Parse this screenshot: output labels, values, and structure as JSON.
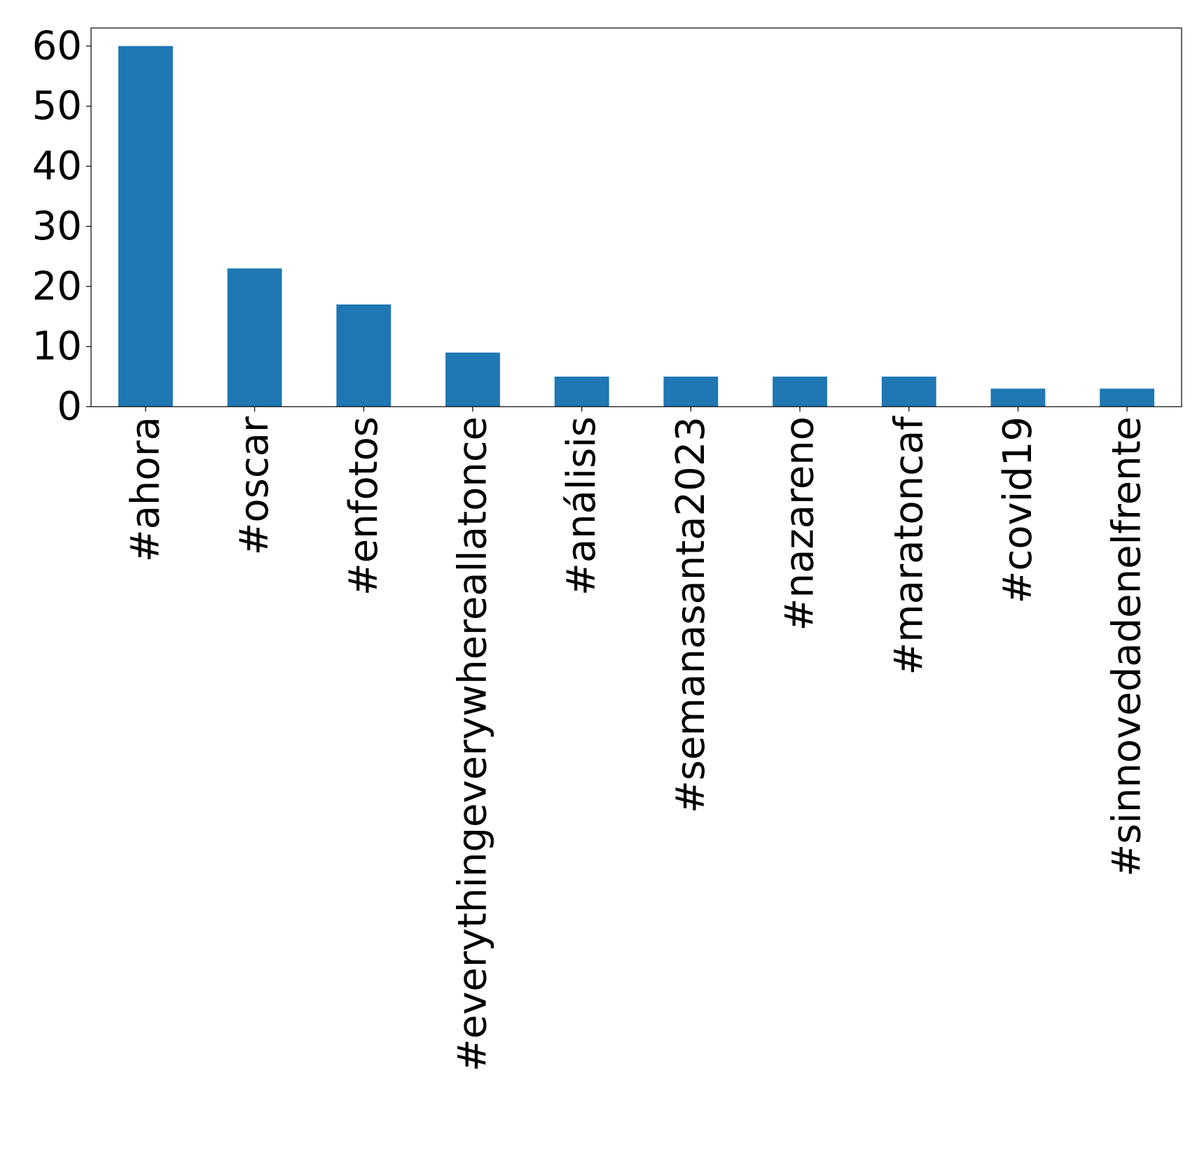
{
  "chart_data": {
    "type": "bar",
    "title": "",
    "xlabel": "",
    "ylabel": "",
    "categories": [
      "#ahora",
      "#oscar",
      "#enfotos",
      "#everythingeverywhereallatonce",
      "#análisis",
      "#semanasanta2023",
      "#nazareno",
      "#maratoncaf",
      "#covid19",
      "#sinnovedadenelfrente"
    ],
    "values": [
      60,
      23,
      17,
      9,
      5,
      5,
      5,
      5,
      3,
      3
    ],
    "ylim": [
      0,
      63
    ],
    "yticks": [
      0,
      10,
      20,
      30,
      40,
      50,
      60
    ],
    "grid": false,
    "legend": "none",
    "bar_color": "#1f77b4"
  }
}
